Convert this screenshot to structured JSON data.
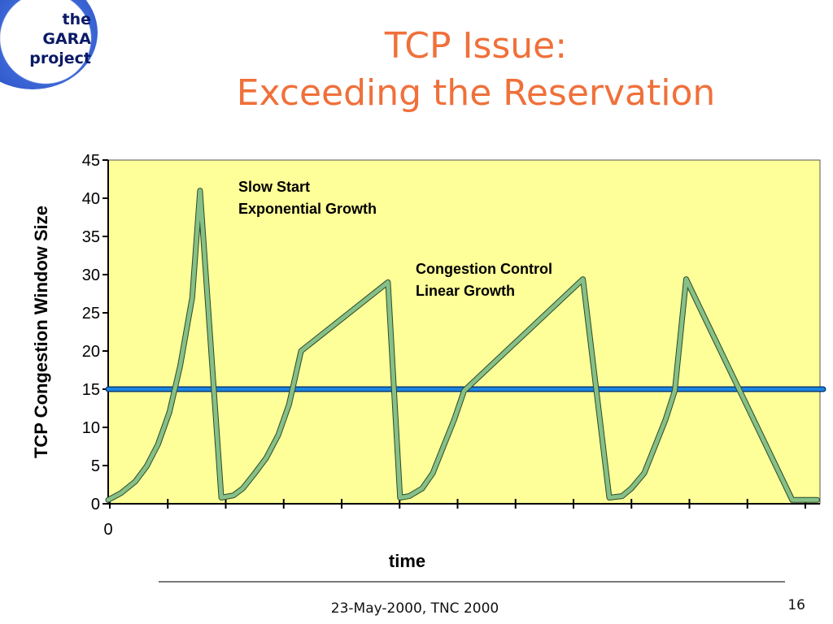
{
  "logo": {
    "line1": "the",
    "line2": "GARA",
    "line3": "project"
  },
  "title": {
    "line1": "TCP Issue:",
    "line2": "Exceeding the Reservation"
  },
  "footer": {
    "text": "23-May-2000, TNC 2000",
    "page_number": "16"
  },
  "colors": {
    "title": "#f0703a",
    "plot_background": "#ffff99",
    "series_line": "#86c086",
    "reservation_line": "#1a86e0",
    "logo_blue": "#1e3fae"
  },
  "chart_data": {
    "type": "line",
    "xlabel": "time",
    "ylabel": "TCP Congestion Window Size",
    "ylim": [
      0,
      45
    ],
    "xlim": [
      0,
      100
    ],
    "y_ticks": [
      "0",
      "5",
      "10",
      "15",
      "20",
      "25",
      "30",
      "35",
      "40",
      "45"
    ],
    "x_tick_labels": [
      "0"
    ],
    "grid": false,
    "annotations": [
      {
        "line1": "Slow Start",
        "line2": "Exponential Growth"
      },
      {
        "line1": "Congestion Control",
        "line2": "Linear Growth"
      }
    ],
    "reservation_level": 15,
    "series": [
      {
        "x": [
          0,
          1.8,
          3.8,
          5.4,
          7.0,
          8.6,
          10.1,
          11.8,
          12.9,
          15.9,
          17.6,
          18.9,
          20.6,
          22.2,
          23.9,
          25.4,
          27.1,
          39.3,
          41.0,
          42.3,
          44.1,
          45.6,
          47.1,
          48.6,
          50.0,
          66.7,
          70.4,
          72.2,
          73.5,
          75.3,
          76.8,
          78.3,
          79.6,
          81.2,
          96.1,
          99.6
        ],
        "y": [
          0.5,
          1.4,
          2.9,
          4.9,
          7.8,
          12.0,
          18.0,
          27.0,
          41.0,
          0.8,
          1.1,
          2.0,
          4.0,
          6.0,
          9.0,
          13.0,
          20.0,
          29.0,
          0.8,
          1.0,
          2.0,
          4.0,
          7.5,
          11.0,
          14.8,
          29.4,
          0.8,
          1.0,
          2.0,
          4.0,
          7.5,
          11.0,
          14.8,
          29.4,
          0.5,
          0.5
        ]
      }
    ]
  }
}
